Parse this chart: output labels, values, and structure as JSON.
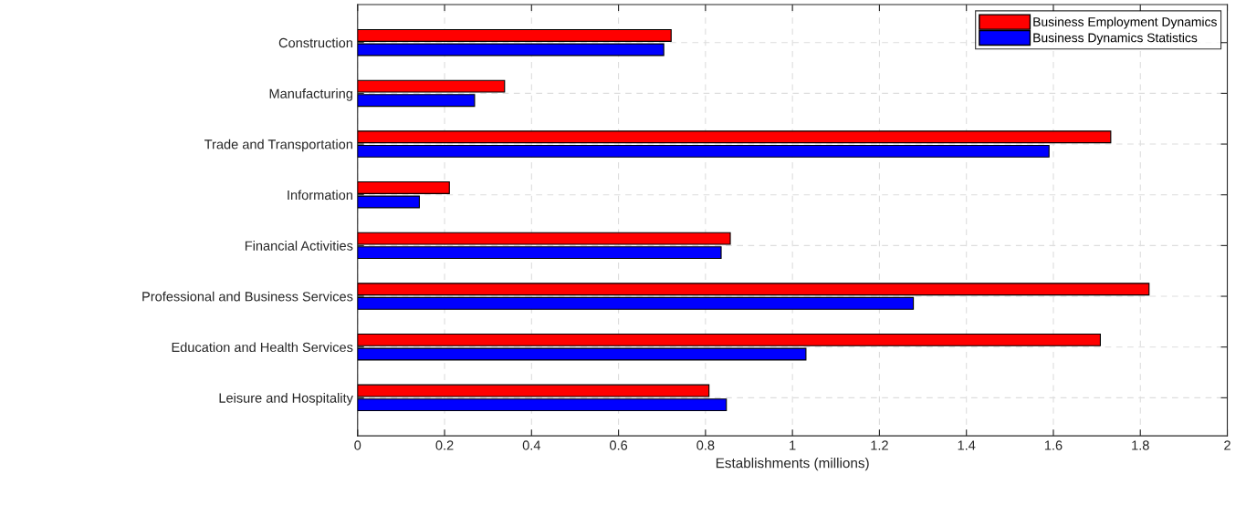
{
  "chart_data": {
    "type": "bar",
    "orientation": "horizontal",
    "xlabel": "Establishments (millions)",
    "categories": [
      "Construction",
      "Manufacturing",
      "Trade and Transportation",
      "Information",
      "Financial Activities",
      "Professional and Business Services",
      "Education and Health Services",
      "Leisure and Hospitality"
    ],
    "series": [
      {
        "name": "Business Employment Dynamics",
        "color": "#ff0000",
        "values": [
          0.721,
          0.338,
          1.732,
          0.211,
          0.857,
          1.82,
          1.708,
          0.808
        ]
      },
      {
        "name": "Business Dynamics Statistics",
        "color": "#0000ff",
        "values": [
          0.704,
          0.269,
          1.59,
          0.142,
          0.836,
          1.278,
          1.031,
          0.848
        ]
      }
    ],
    "xlim": [
      0,
      2
    ],
    "xticks": [
      0,
      0.2,
      0.4,
      0.6,
      0.8,
      1,
      1.2,
      1.4,
      1.6,
      1.8,
      2
    ],
    "grid": true,
    "legend": "top right"
  }
}
